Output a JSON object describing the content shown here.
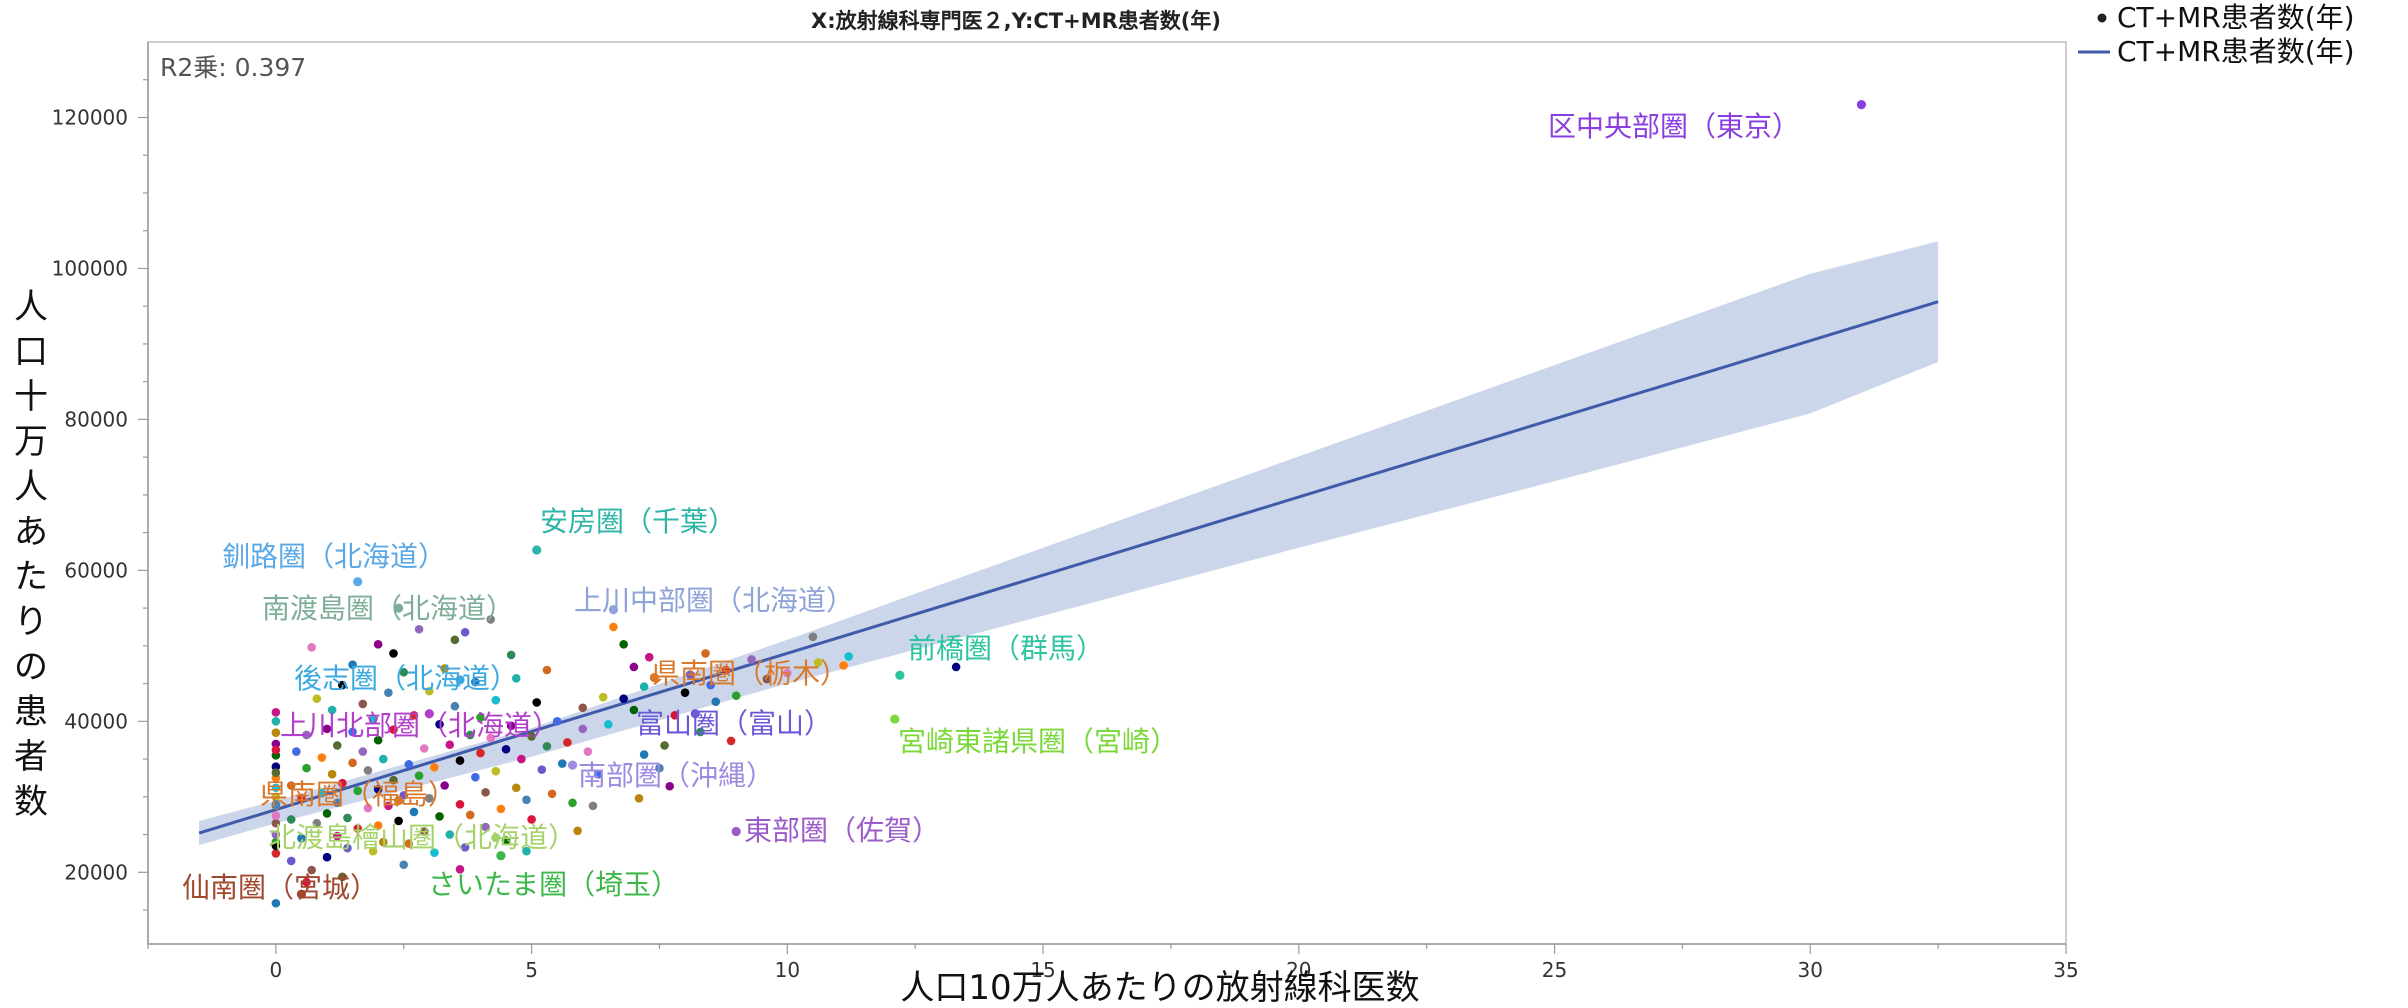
{
  "chart_data": {
    "type": "scatter",
    "title": "X:放射線科専門医２,Y:CT+MR患者数(年)",
    "xlabel": "人口10万人あたりの放射線科医数",
    "ylabel": "人口十万人あたりの患者数",
    "r2_label": "R2乗: 0.397",
    "xlim": [
      -2.5,
      35
    ],
    "ylim": [
      10500,
      130000
    ],
    "xticks": [
      0,
      5,
      10,
      15,
      20,
      25,
      30,
      35
    ],
    "yticks": [
      20000,
      40000,
      60000,
      80000,
      100000,
      120000
    ],
    "grid": false,
    "legend_position": "top-right outside plot",
    "legend": [
      {
        "label": "CT+MR患者数(年)",
        "symbol": "dot"
      },
      {
        "label": "CT+MR患者数(年)",
        "symbol": "line"
      }
    ],
    "colors": {
      "fit_line": "#3f5aa8",
      "confidence_band": "#ccd6ea",
      "axis": "#9a9a9a",
      "tick_text": "#333333"
    },
    "fit_line": {
      "x": [
        -1.5,
        32.5
      ],
      "y": [
        25200,
        95600
      ]
    },
    "confidence_band": {
      "x": [
        -1.5,
        0,
        5,
        10,
        15,
        20,
        25,
        30,
        32.5
      ],
      "lower": [
        23600,
        26500,
        35300,
        45000,
        54000,
        63000,
        71800,
        80800,
        87600
      ],
      "upper": [
        26800,
        29500,
        39100,
        50800,
        63000,
        75100,
        87200,
        99300,
        103600
      ]
    },
    "annotated_points": [
      {
        "label": "区中央部圏（東京）",
        "x": 31.0,
        "y": 121700,
        "color": "#8a3ee0"
      },
      {
        "label": "安房圏（千葉）",
        "x": 5.1,
        "y": 62700,
        "color": "#2fb5a8"
      },
      {
        "label": "釧路圏（北海道）",
        "x": 1.6,
        "y": 58500,
        "color": "#5aa8e6"
      },
      {
        "label": "南渡島圏（北海道）",
        "x": 2.4,
        "y": 55000,
        "color": "#7fae98"
      },
      {
        "label": "上川中部圏（北海道）",
        "x": 6.6,
        "y": 54800,
        "color": "#8ea3d8"
      },
      {
        "label": "前橋圏（群馬）",
        "x": 12.2,
        "y": 46100,
        "color": "#2ec4a0"
      },
      {
        "label": "後志圏（北海道）",
        "x": 3.6,
        "y": 45500,
        "color": "#3aa9e0"
      },
      {
        "label": "県南圏（栃木）",
        "x": 7.4,
        "y": 45800,
        "color": "#d97a2b"
      },
      {
        "label": "宮崎東諸県圏（宮崎）",
        "x": 12.1,
        "y": 40300,
        "color": "#7ad83a"
      },
      {
        "label": "上川北部圏（北海道）",
        "x": 3.0,
        "y": 41000,
        "color": "#b23fc9"
      },
      {
        "label": "富山圏（富山）",
        "x": 8.2,
        "y": 41000,
        "color": "#6a5ad8"
      },
      {
        "label": "南部圏（沖縄）",
        "x": 5.8,
        "y": 34200,
        "color": "#9e8ae0"
      },
      {
        "label": "県南圏（福島）",
        "x": 2.4,
        "y": 29500,
        "color": "#d9782c"
      },
      {
        "label": "東部圏（佐賀）",
        "x": 9.0,
        "y": 25400,
        "color": "#9b5bc9"
      },
      {
        "label": "北渡島檜山圏（北海道）",
        "x": 4.3,
        "y": 24600,
        "color": "#a6d26a"
      },
      {
        "label": "仙南圏（宮城）",
        "x": 0.5,
        "y": 17100,
        "color": "#a0482e"
      },
      {
        "label": "さいたま圏（埼玉）",
        "x": 4.4,
        "y": 22200,
        "color": "#3cb84a"
      }
    ],
    "points": [
      {
        "x": 0.0,
        "y": 15900
      },
      {
        "x": 0.0,
        "y": 22500
      },
      {
        "x": 0.0,
        "y": 24000
      },
      {
        "x": 0.0,
        "y": 25000
      },
      {
        "x": 0.0,
        "y": 26500
      },
      {
        "x": 0.0,
        "y": 27500
      },
      {
        "x": 0.0,
        "y": 28800
      },
      {
        "x": 0.0,
        "y": 30000
      },
      {
        "x": 0.0,
        "y": 31200
      },
      {
        "x": 0.0,
        "y": 32500
      },
      {
        "x": 0.0,
        "y": 34000
      },
      {
        "x": 0.0,
        "y": 35500
      },
      {
        "x": 0.0,
        "y": 37000
      },
      {
        "x": 0.0,
        "y": 38500
      },
      {
        "x": 0.0,
        "y": 40000
      },
      {
        "x": 0.0,
        "y": 41200
      },
      {
        "x": 0.0,
        "y": 29000
      },
      {
        "x": 0.0,
        "y": 33200
      },
      {
        "x": 0.0,
        "y": 36200
      },
      {
        "x": 0.0,
        "y": 23500
      },
      {
        "x": 0.3,
        "y": 21500
      },
      {
        "x": 0.3,
        "y": 27000
      },
      {
        "x": 0.3,
        "y": 31500
      },
      {
        "x": 0.4,
        "y": 36000
      },
      {
        "x": 0.5,
        "y": 24500
      },
      {
        "x": 0.5,
        "y": 29800
      },
      {
        "x": 0.6,
        "y": 33800
      },
      {
        "x": 0.6,
        "y": 38200
      },
      {
        "x": 0.7,
        "y": 20300
      },
      {
        "x": 0.7,
        "y": 49800
      },
      {
        "x": 0.8,
        "y": 26500
      },
      {
        "x": 0.8,
        "y": 43000
      },
      {
        "x": 0.9,
        "y": 30500
      },
      {
        "x": 0.9,
        "y": 35200
      },
      {
        "x": 1.0,
        "y": 22000
      },
      {
        "x": 1.0,
        "y": 27800
      },
      {
        "x": 1.0,
        "y": 39000
      },
      {
        "x": 1.1,
        "y": 33000
      },
      {
        "x": 1.1,
        "y": 41500
      },
      {
        "x": 1.2,
        "y": 24800
      },
      {
        "x": 1.2,
        "y": 29200
      },
      {
        "x": 1.2,
        "y": 36800
      },
      {
        "x": 1.3,
        "y": 31800
      },
      {
        "x": 1.3,
        "y": 44800
      },
      {
        "x": 1.4,
        "y": 23200
      },
      {
        "x": 1.4,
        "y": 27200
      },
      {
        "x": 1.5,
        "y": 34500
      },
      {
        "x": 1.5,
        "y": 38600
      },
      {
        "x": 1.5,
        "y": 47500
      },
      {
        "x": 1.6,
        "y": 25800
      },
      {
        "x": 1.6,
        "y": 30800
      },
      {
        "x": 1.7,
        "y": 36000
      },
      {
        "x": 1.7,
        "y": 42300
      },
      {
        "x": 1.8,
        "y": 28500
      },
      {
        "x": 1.8,
        "y": 33500
      },
      {
        "x": 1.9,
        "y": 22800
      },
      {
        "x": 1.9,
        "y": 40200
      },
      {
        "x": 2.0,
        "y": 26200
      },
      {
        "x": 2.0,
        "y": 31000
      },
      {
        "x": 2.0,
        "y": 37500
      },
      {
        "x": 2.0,
        "y": 50200
      },
      {
        "x": 2.1,
        "y": 24000
      },
      {
        "x": 2.1,
        "y": 35000
      },
      {
        "x": 2.2,
        "y": 28800
      },
      {
        "x": 2.2,
        "y": 43800
      },
      {
        "x": 2.3,
        "y": 32200
      },
      {
        "x": 2.3,
        "y": 38900
      },
      {
        "x": 2.4,
        "y": 26800
      },
      {
        "x": 2.5,
        "y": 30200
      },
      {
        "x": 2.5,
        "y": 46500
      },
      {
        "x": 2.6,
        "y": 23800
      },
      {
        "x": 2.6,
        "y": 34300
      },
      {
        "x": 2.7,
        "y": 28000
      },
      {
        "x": 2.7,
        "y": 40800
      },
      {
        "x": 2.8,
        "y": 32800
      },
      {
        "x": 2.8,
        "y": 52200
      },
      {
        "x": 2.9,
        "y": 25400
      },
      {
        "x": 2.9,
        "y": 36400
      },
      {
        "x": 3.0,
        "y": 29800
      },
      {
        "x": 3.0,
        "y": 44000
      },
      {
        "x": 3.1,
        "y": 22600
      },
      {
        "x": 3.1,
        "y": 33900
      },
      {
        "x": 3.2,
        "y": 39600
      },
      {
        "x": 3.2,
        "y": 27400
      },
      {
        "x": 3.3,
        "y": 31500
      },
      {
        "x": 3.3,
        "y": 47000
      },
      {
        "x": 3.4,
        "y": 25000
      },
      {
        "x": 3.4,
        "y": 36900
      },
      {
        "x": 3.5,
        "y": 42000
      },
      {
        "x": 3.5,
        "y": 50800
      },
      {
        "x": 3.6,
        "y": 29000
      },
      {
        "x": 3.6,
        "y": 34800
      },
      {
        "x": 3.7,
        "y": 23300
      },
      {
        "x": 3.8,
        "y": 38200
      },
      {
        "x": 3.8,
        "y": 27600
      },
      {
        "x": 3.9,
        "y": 32600
      },
      {
        "x": 3.9,
        "y": 45200
      },
      {
        "x": 4.0,
        "y": 35800
      },
      {
        "x": 4.0,
        "y": 40500
      },
      {
        "x": 4.1,
        "y": 26000
      },
      {
        "x": 4.1,
        "y": 30600
      },
      {
        "x": 4.2,
        "y": 37800
      },
      {
        "x": 4.2,
        "y": 53500
      },
      {
        "x": 4.3,
        "y": 33400
      },
      {
        "x": 4.3,
        "y": 42800
      },
      {
        "x": 4.4,
        "y": 28400
      },
      {
        "x": 4.5,
        "y": 36300
      },
      {
        "x": 4.5,
        "y": 24200
      },
      {
        "x": 4.6,
        "y": 39400
      },
      {
        "x": 4.7,
        "y": 31200
      },
      {
        "x": 4.7,
        "y": 45700
      },
      {
        "x": 4.8,
        "y": 35000
      },
      {
        "x": 4.9,
        "y": 29600
      },
      {
        "x": 5.0,
        "y": 38000
      },
      {
        "x": 5.0,
        "y": 27000
      },
      {
        "x": 5.1,
        "y": 42500
      },
      {
        "x": 5.2,
        "y": 33600
      },
      {
        "x": 5.3,
        "y": 36700
      },
      {
        "x": 5.4,
        "y": 30400
      },
      {
        "x": 5.5,
        "y": 40000
      },
      {
        "x": 5.6,
        "y": 34400
      },
      {
        "x": 5.7,
        "y": 37200
      },
      {
        "x": 5.8,
        "y": 29200
      },
      {
        "x": 6.0,
        "y": 39000
      },
      {
        "x": 6.0,
        "y": 41800
      },
      {
        "x": 6.1,
        "y": 36000
      },
      {
        "x": 6.2,
        "y": 28800
      },
      {
        "x": 6.4,
        "y": 43200
      },
      {
        "x": 6.5,
        "y": 39600
      },
      {
        "x": 6.6,
        "y": 52500
      },
      {
        "x": 6.8,
        "y": 43000
      },
      {
        "x": 7.0,
        "y": 41500
      },
      {
        "x": 7.0,
        "y": 47200
      },
      {
        "x": 7.1,
        "y": 29800
      },
      {
        "x": 7.2,
        "y": 44600
      },
      {
        "x": 7.3,
        "y": 48500
      },
      {
        "x": 7.5,
        "y": 33800
      },
      {
        "x": 7.6,
        "y": 36800
      },
      {
        "x": 7.8,
        "y": 40800
      },
      {
        "x": 8.0,
        "y": 43800
      },
      {
        "x": 8.1,
        "y": 46200
      },
      {
        "x": 8.3,
        "y": 38600
      },
      {
        "x": 8.4,
        "y": 49000
      },
      {
        "x": 8.5,
        "y": 44800
      },
      {
        "x": 8.6,
        "y": 42600
      },
      {
        "x": 8.8,
        "y": 46800
      },
      {
        "x": 9.0,
        "y": 43400
      },
      {
        "x": 9.3,
        "y": 48200
      },
      {
        "x": 9.6,
        "y": 45600
      },
      {
        "x": 10.0,
        "y": 46400
      },
      {
        "x": 10.5,
        "y": 51200
      },
      {
        "x": 10.6,
        "y": 47800
      },
      {
        "x": 11.2,
        "y": 48600
      },
      {
        "x": 11.1,
        "y": 47400
      },
      {
        "x": 13.3,
        "y": 47200
      },
      {
        "x": 6.8,
        "y": 50200
      },
      {
        "x": 7.7,
        "y": 31400
      },
      {
        "x": 5.9,
        "y": 25500
      },
      {
        "x": 4.9,
        "y": 22800
      },
      {
        "x": 3.6,
        "y": 20400
      },
      {
        "x": 2.5,
        "y": 21000
      },
      {
        "x": 1.3,
        "y": 19400
      },
      {
        "x": 0.6,
        "y": 18700
      },
      {
        "x": 2.3,
        "y": 49000
      },
      {
        "x": 3.7,
        "y": 51800
      },
      {
        "x": 4.6,
        "y": 48800
      },
      {
        "x": 5.3,
        "y": 46800
      },
      {
        "x": 6.3,
        "y": 33000
      },
      {
        "x": 7.2,
        "y": 35600
      },
      {
        "x": 8.9,
        "y": 37400
      }
    ]
  }
}
